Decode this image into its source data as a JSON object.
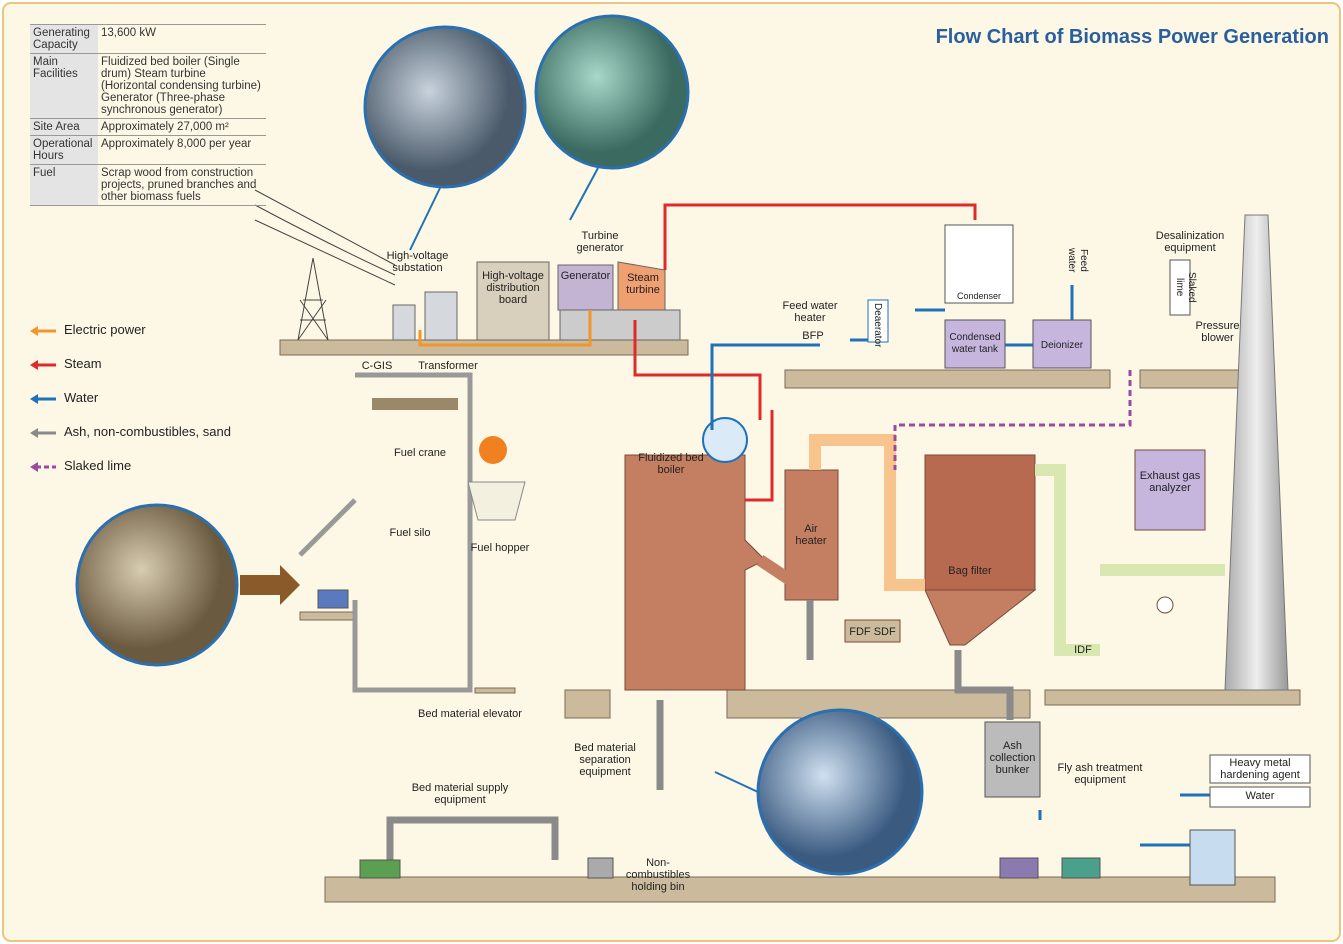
{
  "title": "Flow Chart of Biomass Power Generation",
  "specs": {
    "rows": [
      {
        "label": "Generating Capacity",
        "value": "13,600 kW"
      },
      {
        "label": "Main Facilities",
        "value": "Fluidized bed boiler (Single drum) Steam turbine (Horizontal condensing turbine) Generator (Three-phase synchronous generator)"
      },
      {
        "label": "Site Area",
        "value": "Approximately 27,000 m²"
      },
      {
        "label": "Operational Hours",
        "value": "Approximately 8,000 per year"
      },
      {
        "label": "Fuel",
        "value": "Scrap wood from construction projects, pruned branches and other biomass fuels"
      }
    ]
  },
  "legend": [
    {
      "label": "Electric power",
      "color": "#f0962a",
      "dashed": false
    },
    {
      "label": "Steam",
      "color": "#e02a2a",
      "dashed": false
    },
    {
      "label": "Water",
      "color": "#1f72b8",
      "dashed": false
    },
    {
      "label": "Ash, non-combustibles, sand",
      "color": "#8a8a8a",
      "dashed": false
    },
    {
      "label": "Slaked lime",
      "color": "#9b4aa0",
      "dashed": true
    }
  ],
  "labels": [
    "High-voltage substation",
    "High-voltage distribution board",
    "Turbine generator",
    "Generator",
    "Steam turbine",
    "C-GIS",
    "Transformer",
    "Feed water heater",
    "BFP",
    "Deaerator",
    "Condenser",
    "Condensed water tank",
    "Feed water",
    "Deionizer",
    "Desalinization equipment",
    "Slaked lime",
    "Pressure blower",
    "Fuel crane",
    "Fuel silo",
    "Fuel hopper",
    "Fluidized bed boiler",
    "Air heater",
    "FDF SDF",
    "Bag filter",
    "Exhaust gas analyzer",
    "IDF",
    "Bed material elevator",
    "Bed material separation equipment",
    "Bed material supply equipment",
    "Non-combustibles holding bin",
    "Ash collection bunker",
    "Fly ash treatment equipment",
    "Heavy metal hardening agent",
    "Water"
  ]
}
